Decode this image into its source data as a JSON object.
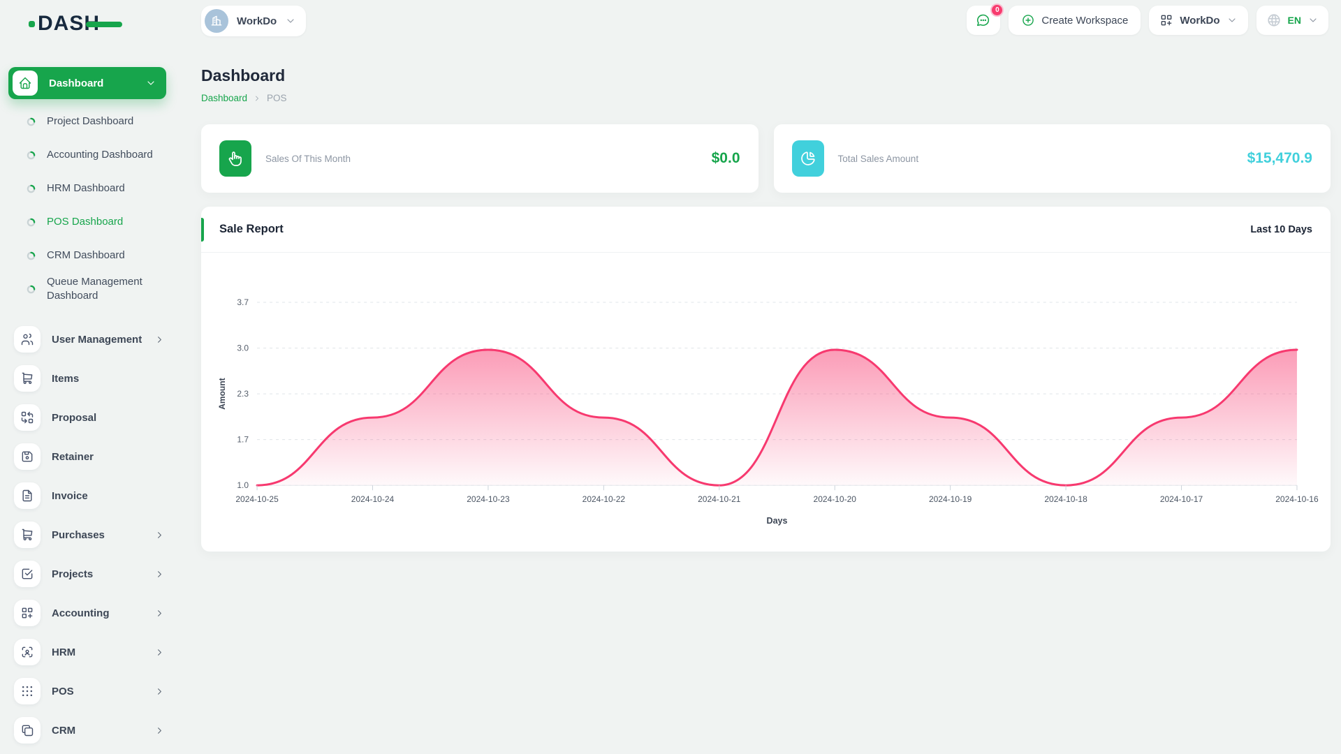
{
  "app": {
    "name": "DASH"
  },
  "topbar": {
    "workspace_switcher": {
      "label": "WorkDo"
    },
    "messages": {
      "badge_count": "0"
    },
    "create_workspace": {
      "label": "Create Workspace"
    },
    "workspace_menu": {
      "label": "WorkDo"
    },
    "language": {
      "label": "EN"
    }
  },
  "sidebar": {
    "dashboard": {
      "label": "Dashboard"
    },
    "dashboard_children": [
      {
        "label": "Project Dashboard",
        "active": false
      },
      {
        "label": "Accounting Dashboard",
        "active": false
      },
      {
        "label": "HRM Dashboard",
        "active": false
      },
      {
        "label": "POS Dashboard",
        "active": true
      },
      {
        "label": "CRM Dashboard",
        "active": false
      },
      {
        "label": "Queue Management Dashboard",
        "active": false
      }
    ],
    "menu": [
      {
        "label": "User Management",
        "icon": "users-icon",
        "has_children": true
      },
      {
        "label": "Items",
        "icon": "cart-icon",
        "has_children": false
      },
      {
        "label": "Proposal",
        "icon": "replace-icon",
        "has_children": false
      },
      {
        "label": "Retainer",
        "icon": "floppy-icon",
        "has_children": false
      },
      {
        "label": "Invoice",
        "icon": "invoice-icon",
        "has_children": false
      },
      {
        "label": "Purchases",
        "icon": "cart-icon",
        "has_children": true
      },
      {
        "label": "Projects",
        "icon": "checkbox-icon",
        "has_children": true
      },
      {
        "label": "Accounting",
        "icon": "grid-add-icon",
        "has_children": true
      },
      {
        "label": "HRM",
        "icon": "user-scan-icon",
        "has_children": true
      },
      {
        "label": "POS",
        "icon": "dots-grid-icon",
        "has_children": true
      },
      {
        "label": "CRM",
        "icon": "copy-icon",
        "has_children": true
      }
    ]
  },
  "page": {
    "title": "Dashboard",
    "breadcrumb": [
      {
        "label": "Dashboard",
        "link": true
      },
      {
        "label": "POS",
        "link": false
      }
    ]
  },
  "stats": [
    {
      "label": "Sales Of This Month",
      "value": "$0.0",
      "icon": "hand-click-icon",
      "accent": "#17a54c"
    },
    {
      "label": "Total Sales Amount",
      "value": "$15,470.9",
      "icon": "pie-chart-icon",
      "accent": "#41d0dc"
    }
  ],
  "sale_report": {
    "title": "Sale Report",
    "range_label": "Last 10 Days"
  },
  "chart_data": {
    "type": "area",
    "title": "Sale Report",
    "x": [
      "2024-10-25",
      "2024-10-24",
      "2024-10-23",
      "2024-10-22",
      "2024-10-21",
      "2024-10-20",
      "2024-10-19",
      "2024-10-18",
      "2024-10-17",
      "2024-10-16"
    ],
    "series": [
      {
        "name": "Amount",
        "values": [
          1.0,
          2.0,
          3.0,
          2.0,
          1.0,
          3.0,
          2.0,
          1.0,
          2.0,
          3.0
        ]
      }
    ],
    "xlabel": "Days",
    "ylabel": "Amount",
    "ylim": [
      1.0,
      3.7
    ],
    "ytick_labels": [
      "3.7",
      "3.0",
      "2.3",
      "1.7",
      "1.0"
    ],
    "grid": "horizontal-dashed",
    "legend": "none",
    "line_color": "#f7396f",
    "fill_color": "#f7396f"
  },
  "colors": {
    "accent_green": "#17a54c",
    "teal": "#41d0dc",
    "pink": "#f7396f"
  }
}
